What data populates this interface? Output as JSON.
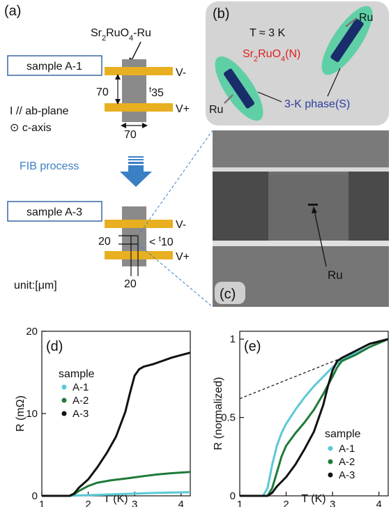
{
  "panel_a": {
    "label": "(a)",
    "material": "Sr2RuO4-Ru",
    "sample1": "sample A-1",
    "sample3": "sample A-3",
    "dim_h": "70",
    "dim_w": "70",
    "thick1": "t35",
    "thick3": "< t10",
    "dim3_h": "20",
    "dim3_w": "20",
    "v_minus": "V-",
    "v_plus": "V+",
    "current_dir": "I // ab-plane",
    "caxis": "⊙ c-axis",
    "fib": "FIB process",
    "unit": "unit:[μm]"
  },
  "panel_b": {
    "label": "(b)",
    "temp": "T ≈ 3 K",
    "normal": "Sr2RuO4(N)",
    "ru": "Ru",
    "phase": "3-K phase(S)"
  },
  "panel_c": {
    "label": "(c)",
    "ru": "Ru"
  },
  "colors": {
    "A1": "#5bc8d6",
    "A2": "#1f7a3a",
    "A3": "#111111",
    "electrode": "#e8b020",
    "sample_gray": "#8a8a8a",
    "green_halo": "#5fd0a5",
    "ru_blue": "#1a2d6b",
    "fib_arrow": "#3b7fc4",
    "normal_red": "#e02020",
    "phase_blue": "#2a3c9c"
  },
  "chart_data": [
    {
      "label": "(d)",
      "type": "line",
      "xlabel": "T (K)",
      "ylabel": "R (mΩ)",
      "xlim": [
        1,
        4.2
      ],
      "ylim": [
        0,
        20
      ],
      "xticks": [
        1,
        2,
        3,
        4
      ],
      "yticks": [
        0,
        10,
        20
      ],
      "legend_title": "sample",
      "legend_position": "middle-left",
      "series": [
        {
          "name": "A-1",
          "x": [
            1.0,
            1.6,
            1.8,
            2.2,
            2.6,
            3.0,
            3.4,
            3.8,
            4.2
          ],
          "y": [
            0,
            0,
            0.05,
            0.12,
            0.2,
            0.28,
            0.35,
            0.4,
            0.45
          ]
        },
        {
          "name": "A-2",
          "x": [
            1.0,
            1.6,
            1.7,
            1.8,
            2.0,
            2.2,
            2.5,
            2.8,
            3.0,
            3.2,
            3.5,
            3.8,
            4.2
          ],
          "y": [
            0,
            0,
            0.2,
            0.6,
            1.2,
            1.6,
            1.9,
            2.1,
            2.25,
            2.4,
            2.6,
            2.75,
            2.9
          ]
        },
        {
          "name": "A-3",
          "x": [
            1.0,
            1.6,
            1.7,
            1.8,
            2.0,
            2.2,
            2.4,
            2.6,
            2.8,
            2.9,
            3.0,
            3.1,
            3.2,
            3.4,
            3.6,
            3.8,
            4.0,
            4.2
          ],
          "y": [
            0,
            0,
            0.3,
            1.0,
            2.0,
            3.5,
            5.2,
            7.2,
            10.2,
            12.5,
            14.6,
            15.4,
            15.7,
            16.0,
            16.4,
            16.8,
            17.1,
            17.4
          ]
        }
      ]
    },
    {
      "label": "(e)",
      "type": "line",
      "xlabel": "T (K)",
      "ylabel": "R (normalized)",
      "xlim": [
        1,
        4.2
      ],
      "ylim": [
        0,
        1.05
      ],
      "xticks": [
        1,
        2,
        3,
        4
      ],
      "yticks": [
        0,
        0.5,
        1
      ],
      "legend_title": "sample",
      "legend_position": "bottom-right",
      "dashed_line": {
        "x": [
          1,
          3.2
        ],
        "y": [
          0.62,
          0.88
        ]
      },
      "series": [
        {
          "name": "A-1",
          "x": [
            1.0,
            1.5,
            1.6,
            1.7,
            1.8,
            1.9,
            2.0,
            2.2,
            2.4,
            2.6,
            2.8,
            3.0,
            3.2,
            3.5,
            3.8,
            4.2
          ],
          "y": [
            0,
            0,
            0.05,
            0.2,
            0.32,
            0.4,
            0.46,
            0.55,
            0.63,
            0.7,
            0.76,
            0.82,
            0.87,
            0.91,
            0.95,
            1.0
          ]
        },
        {
          "name": "A-2",
          "x": [
            1.0,
            1.6,
            1.7,
            1.8,
            1.9,
            2.0,
            2.2,
            2.4,
            2.6,
            2.8,
            3.0,
            3.1,
            3.2,
            3.5,
            3.8,
            4.2
          ],
          "y": [
            0,
            0,
            0.05,
            0.15,
            0.25,
            0.32,
            0.4,
            0.47,
            0.55,
            0.65,
            0.76,
            0.82,
            0.86,
            0.9,
            0.95,
            1.0
          ]
        },
        {
          "name": "A-3",
          "x": [
            1.0,
            1.6,
            1.7,
            1.8,
            2.0,
            2.2,
            2.4,
            2.6,
            2.8,
            2.9,
            3.0,
            3.1,
            3.2,
            3.4,
            3.6,
            3.8,
            4.2
          ],
          "y": [
            0,
            0,
            0.02,
            0.06,
            0.12,
            0.2,
            0.3,
            0.41,
            0.58,
            0.7,
            0.8,
            0.86,
            0.88,
            0.91,
            0.94,
            0.97,
            1.0
          ]
        }
      ]
    }
  ]
}
